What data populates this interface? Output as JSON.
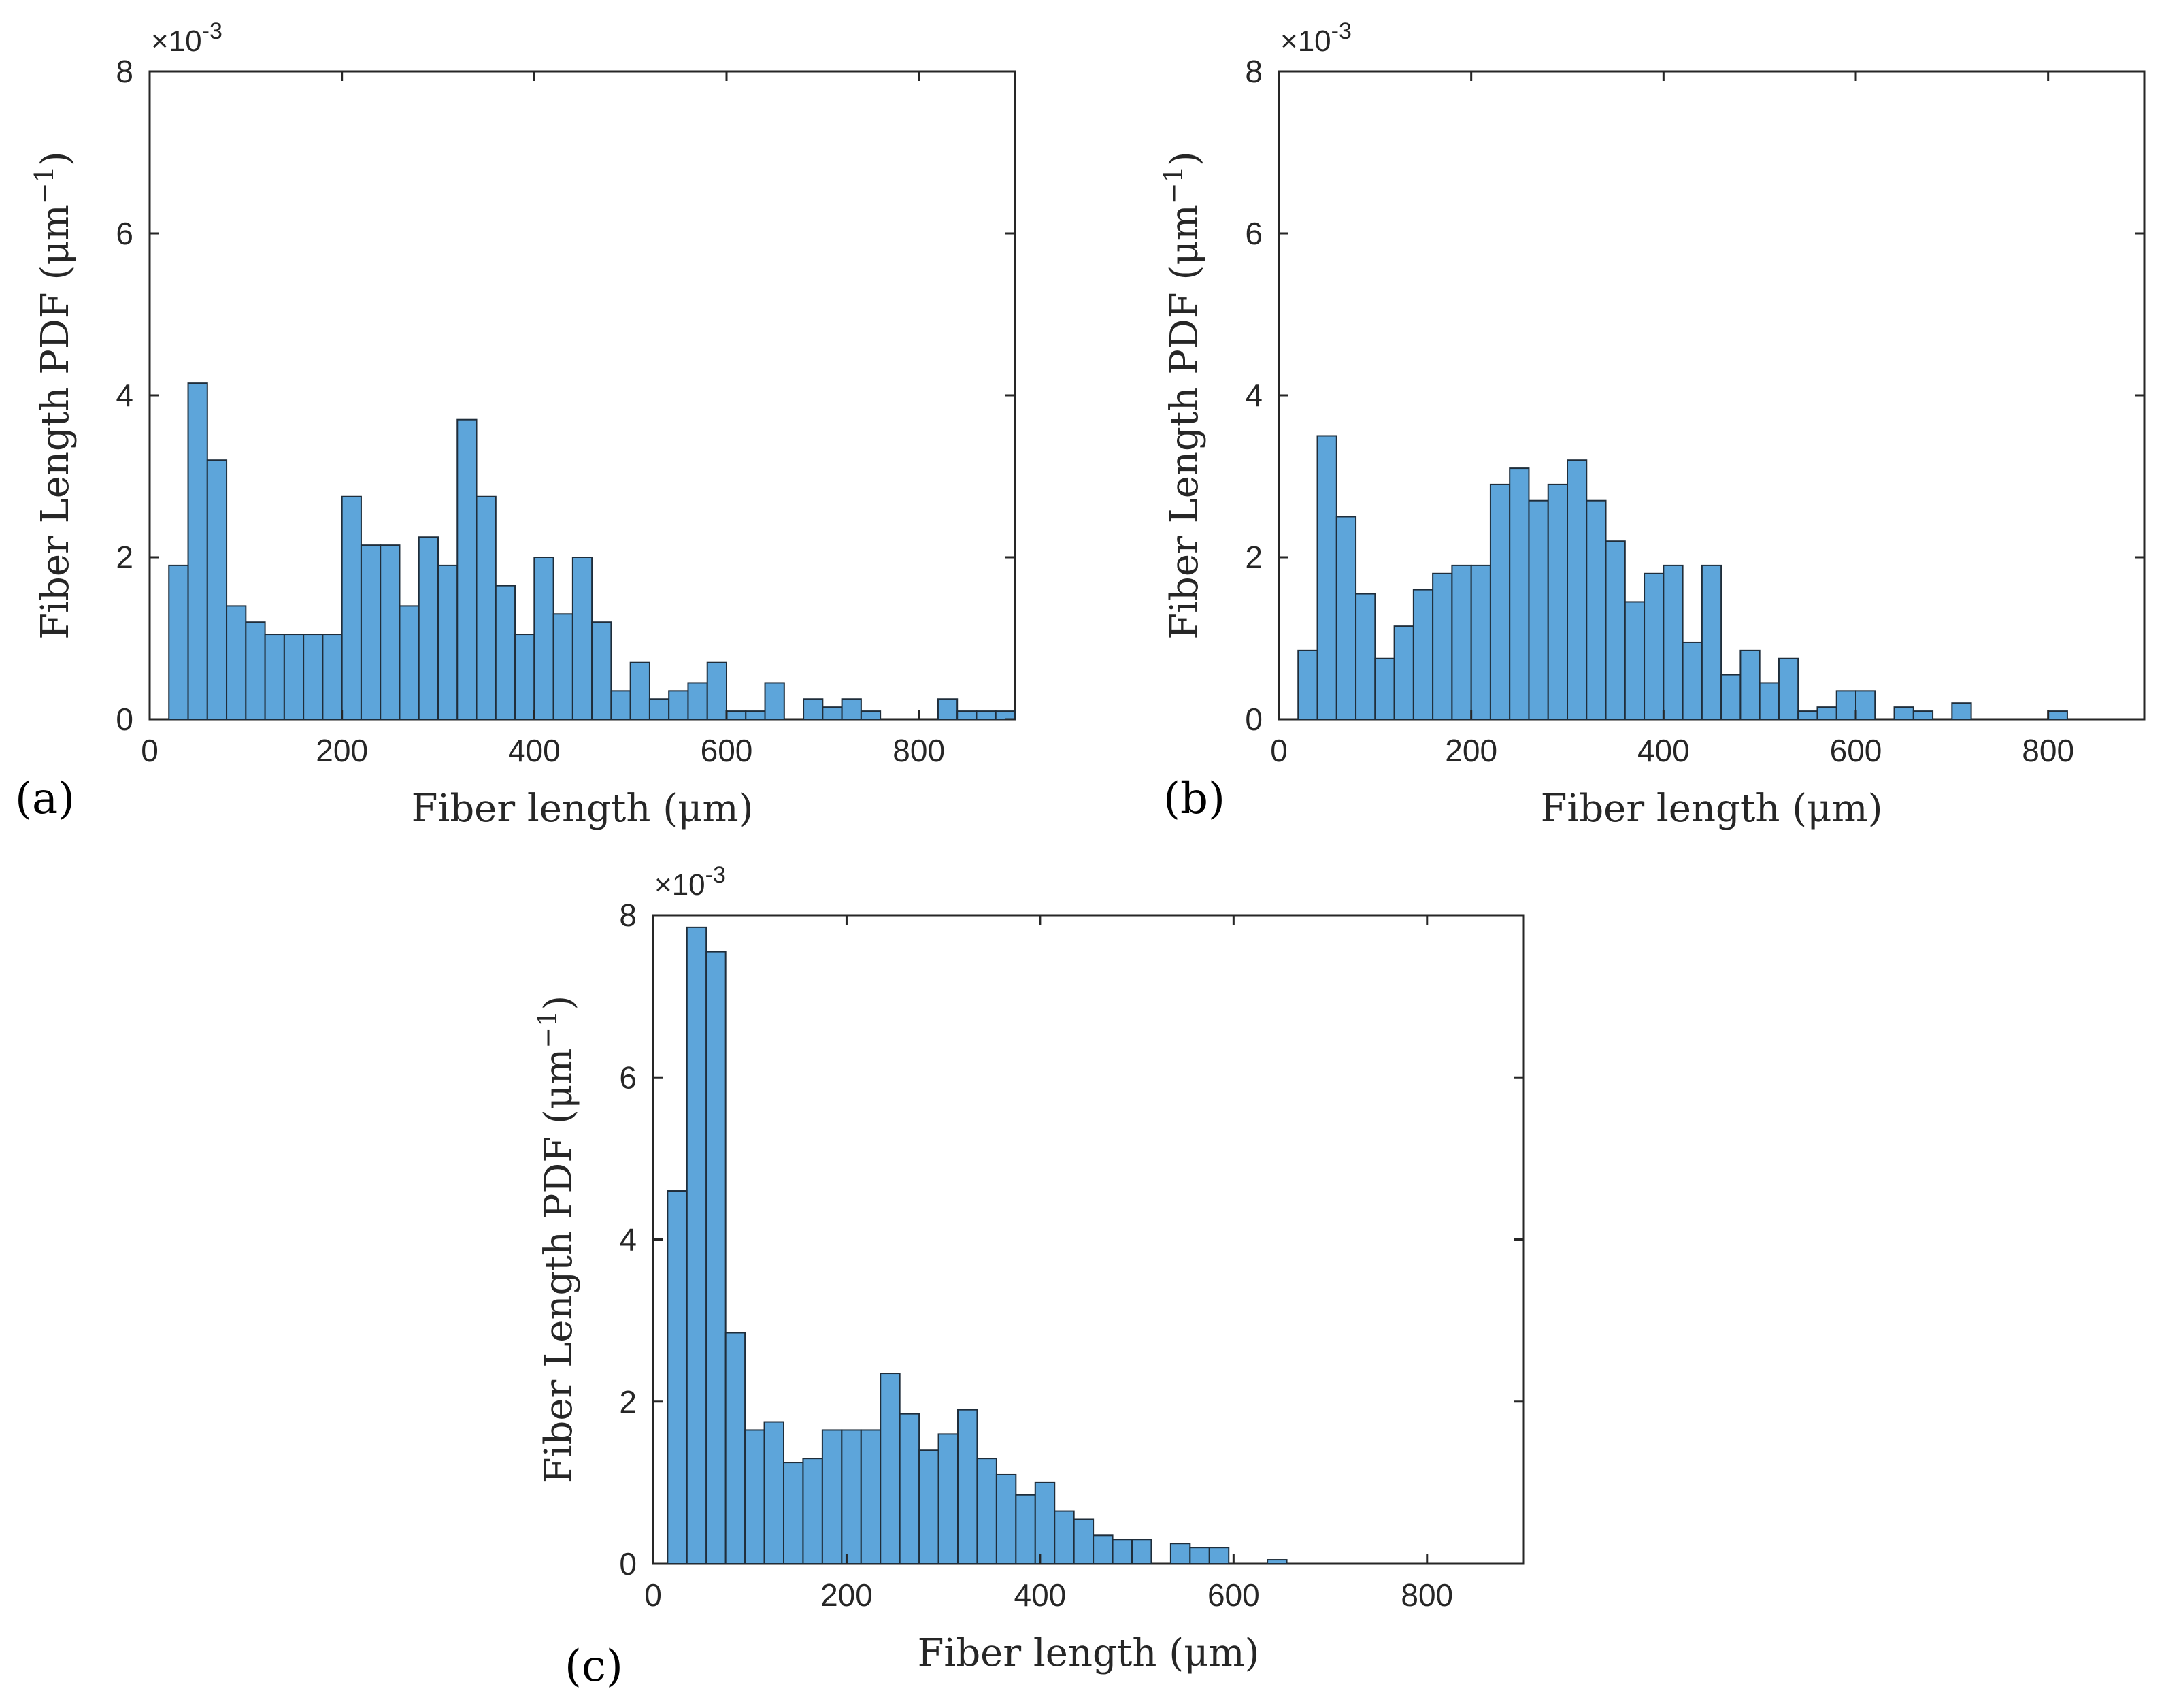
{
  "chart_data": [
    {
      "type": "bar",
      "panel": "(a)",
      "x": [
        30,
        50,
        70,
        90,
        110,
        130,
        150,
        170,
        190,
        210,
        230,
        250,
        270,
        290,
        310,
        330,
        350,
        370,
        390,
        410,
        430,
        450,
        470,
        490,
        510,
        530,
        550,
        570,
        590,
        610,
        630,
        650,
        670,
        690,
        710,
        730,
        750,
        770,
        790,
        810,
        830,
        850,
        870,
        890
      ],
      "bin_width": 20,
      "values": [
        1.9,
        4.15,
        3.2,
        1.4,
        1.2,
        1.05,
        1.05,
        1.05,
        1.05,
        2.75,
        2.15,
        2.15,
        1.4,
        2.25,
        1.9,
        3.7,
        2.75,
        1.65,
        1.05,
        2.0,
        1.3,
        2.0,
        1.2,
        0.35,
        0.7,
        0.25,
        0.35,
        0.45,
        0.7,
        0.1,
        0.1,
        0.45,
        0.0,
        0.25,
        0.15,
        0.25,
        0.1,
        0.0,
        0.0,
        0.0,
        0.25,
        0.1,
        0.1,
        0.1
      ],
      "xlabel": "Fiber length (μm)",
      "ylabel": "Fiber Length PDF (μm",
      "ylabel_sup": "−1",
      "ylabel_close": ")",
      "xlim": [
        0,
        900
      ],
      "ylim": [
        0,
        8
      ],
      "xticks": [
        "0",
        "200",
        "400",
        "600",
        "800"
      ],
      "yticks": [
        "0",
        "2",
        "4",
        "6",
        "8"
      ],
      "exponent_base": "×10",
      "exponent_power": "-3",
      "bar_color": "#5DA5DA"
    },
    {
      "type": "bar",
      "panel": "(b)",
      "x": [
        30,
        50,
        70,
        90,
        110,
        130,
        150,
        170,
        190,
        210,
        230,
        250,
        270,
        290,
        310,
        330,
        350,
        370,
        390,
        410,
        430,
        450,
        470,
        490,
        510,
        530,
        550,
        570,
        590,
        610,
        630,
        650,
        670,
        690,
        710,
        730,
        750,
        770,
        790,
        810
      ],
      "bin_width": 20,
      "values": [
        0.85,
        3.5,
        2.5,
        1.55,
        0.75,
        1.15,
        1.6,
        1.8,
        1.9,
        1.9,
        2.9,
        3.1,
        2.7,
        2.9,
        3.2,
        2.7,
        2.2,
        1.45,
        1.8,
        1.9,
        0.95,
        1.9,
        0.55,
        0.85,
        0.45,
        0.75,
        0.1,
        0.15,
        0.35,
        0.35,
        0.0,
        0.15,
        0.1,
        0.0,
        0.2,
        0.0,
        0.0,
        0.0,
        0.0,
        0.1
      ],
      "xlabel": "Fiber length (μm)",
      "ylabel": "Fiber Length PDF (μm",
      "ylabel_sup": "−1",
      "ylabel_close": ")",
      "xlim": [
        0,
        900
      ],
      "ylim": [
        0,
        8
      ],
      "xticks": [
        "0",
        "200",
        "400",
        "600",
        "800"
      ],
      "yticks": [
        "0",
        "2",
        "4",
        "6",
        "8"
      ],
      "exponent_base": "×10",
      "exponent_power": "-3",
      "bar_color": "#5DA5DA"
    },
    {
      "type": "bar",
      "panel": "(c)",
      "x": [
        25,
        45,
        65,
        85,
        105,
        125,
        145,
        165,
        185,
        205,
        225,
        245,
        265,
        285,
        305,
        325,
        345,
        365,
        385,
        405,
        425,
        445,
        465,
        485,
        505,
        525,
        545,
        565,
        585,
        605,
        625,
        645
      ],
      "bin_width": 20,
      "values": [
        4.6,
        7.85,
        7.55,
        2.85,
        1.65,
        1.75,
        1.25,
        1.3,
        1.65,
        1.65,
        1.65,
        2.35,
        1.85,
        1.4,
        1.6,
        1.9,
        1.3,
        1.1,
        0.85,
        1.0,
        0.65,
        0.55,
        0.35,
        0.3,
        0.3,
        0.0,
        0.25,
        0.2,
        0.2,
        0.0,
        0.0,
        0.05
      ],
      "xlabel": "Fiber length (μm)",
      "ylabel": "Fiber Length PDF (μm",
      "ylabel_sup": "−1",
      "ylabel_close": ")",
      "xlim": [
        0,
        900
      ],
      "ylim": [
        0,
        8
      ],
      "xticks": [
        "0",
        "200",
        "400",
        "600",
        "800"
      ],
      "yticks": [
        "0",
        "2",
        "4",
        "6",
        "8"
      ],
      "exponent_base": "×10",
      "exponent_power": "-3",
      "bar_color": "#5DA5DA"
    }
  ]
}
